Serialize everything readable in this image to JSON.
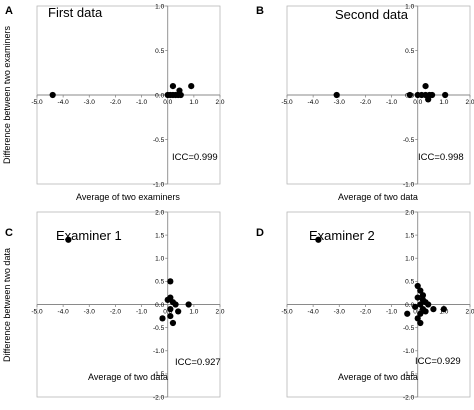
{
  "chart_data": [
    {
      "type": "scatter",
      "panel": "A",
      "title": "First data",
      "xlabel": "Average of  two examiners",
      "ylabel": "Difference between two examiners",
      "annotation": "ICC=0.999",
      "xlim": [
        -5.0,
        2.0
      ],
      "ylim": [
        -1.0,
        1.0
      ],
      "xticks": [
        "-5.0",
        "-4.0",
        "-3.0",
        "-2.0",
        "-1.0",
        "0.0",
        "1.0",
        "2.0"
      ],
      "yticks": [
        "-1.0",
        "-0.5",
        "0.0",
        "0.5",
        "1.0"
      ],
      "grid": false,
      "points": [
        {
          "x": -4.4,
          "y": 0.0
        },
        {
          "x": 0.0,
          "y": 0.0
        },
        {
          "x": 0.1,
          "y": 0.0
        },
        {
          "x": 0.2,
          "y": 0.0
        },
        {
          "x": 0.3,
          "y": 0.0
        },
        {
          "x": 0.4,
          "y": 0.0
        },
        {
          "x": 0.5,
          "y": 0.0
        },
        {
          "x": 0.2,
          "y": 0.1
        },
        {
          "x": 0.45,
          "y": 0.05
        },
        {
          "x": 0.9,
          "y": 0.1
        }
      ]
    },
    {
      "type": "scatter",
      "panel": "B",
      "title": "Second data",
      "xlabel": "Average of  two data",
      "ylabel": "",
      "annotation": "ICC=0.998",
      "xlim": [
        -5.0,
        2.0
      ],
      "ylim": [
        -1.0,
        1.0
      ],
      "xticks": [
        "-5.0",
        "-4.0",
        "-3.0",
        "-2.0",
        "-1.0",
        "0.0",
        "1.0",
        "2.0"
      ],
      "yticks": [
        "-1.0",
        "-0.5",
        "0.0",
        "0.5",
        "1.0"
      ],
      "grid": false,
      "points": [
        {
          "x": -3.1,
          "y": 0.0
        },
        {
          "x": -0.3,
          "y": 0.0
        },
        {
          "x": 0.0,
          "y": 0.0
        },
        {
          "x": 0.15,
          "y": 0.0
        },
        {
          "x": 0.3,
          "y": 0.0
        },
        {
          "x": 0.45,
          "y": 0.0
        },
        {
          "x": 0.55,
          "y": 0.0
        },
        {
          "x": 0.4,
          "y": -0.05
        },
        {
          "x": 0.3,
          "y": 0.1
        },
        {
          "x": 1.05,
          "y": 0.0
        }
      ]
    },
    {
      "type": "scatter",
      "panel": "C",
      "title": "Examiner 1",
      "xlabel": "Average of  two data",
      "ylabel": "Difference between two data",
      "annotation": "ICC=0.927",
      "xlim": [
        -5.0,
        2.0
      ],
      "ylim": [
        -2.0,
        2.0
      ],
      "xticks": [
        "-5.0",
        "-4.0",
        "-3.0",
        "-2.0",
        "-1.0",
        "0.0",
        "1.0",
        "2.0"
      ],
      "yticks": [
        "-2.0",
        "-1.5",
        "-1.0",
        "-0.5",
        "0.0",
        "0.5",
        "1.0",
        "1.5",
        "2.0"
      ],
      "grid": false,
      "points": [
        {
          "x": -3.8,
          "y": 1.4
        },
        {
          "x": 0.1,
          "y": 0.5
        },
        {
          "x": 0.1,
          "y": 0.15
        },
        {
          "x": 0.2,
          "y": 0.05
        },
        {
          "x": 0.3,
          "y": 0.0
        },
        {
          "x": 0.1,
          "y": -0.1
        },
        {
          "x": 0.4,
          "y": -0.15
        },
        {
          "x": 0.1,
          "y": -0.25
        },
        {
          "x": -0.2,
          "y": -0.3
        },
        {
          "x": 0.2,
          "y": -0.4
        },
        {
          "x": 0.8,
          "y": 0.0
        },
        {
          "x": 0.0,
          "y": 0.1
        }
      ]
    },
    {
      "type": "scatter",
      "panel": "D",
      "title": "Examiner 2",
      "xlabel": "Average of  two data",
      "ylabel": "",
      "annotation": "ICC=0.929",
      "xlim": [
        -5.0,
        2.0
      ],
      "ylim": [
        -2.0,
        2.0
      ],
      "xticks": [
        "-5.0",
        "-4.0",
        "-3.0",
        "-2.0",
        "-1.0",
        "0.0",
        "1.0",
        "2.0"
      ],
      "yticks": [
        "-2.0",
        "-1.5",
        "-1.0",
        "-0.5",
        "0.0",
        "0.5",
        "1.0",
        "1.5",
        "2.0"
      ],
      "grid": false,
      "points": [
        {
          "x": -3.8,
          "y": 1.4
        },
        {
          "x": 0.0,
          "y": 0.4
        },
        {
          "x": 0.1,
          "y": 0.3
        },
        {
          "x": 0.0,
          "y": 0.15
        },
        {
          "x": 0.2,
          "y": 0.1
        },
        {
          "x": 0.3,
          "y": 0.05
        },
        {
          "x": 0.1,
          "y": 0.0
        },
        {
          "x": 0.4,
          "y": 0.0
        },
        {
          "x": -0.1,
          "y": -0.05
        },
        {
          "x": 0.2,
          "y": -0.1
        },
        {
          "x": -0.4,
          "y": -0.2
        },
        {
          "x": 0.1,
          "y": -0.2
        },
        {
          "x": 0.3,
          "y": -0.15
        },
        {
          "x": 0.0,
          "y": -0.3
        },
        {
          "x": 0.1,
          "y": -0.4
        },
        {
          "x": 0.6,
          "y": -0.1
        },
        {
          "x": 1.0,
          "y": -0.1
        },
        {
          "x": 0.2,
          "y": 0.2
        }
      ]
    }
  ]
}
